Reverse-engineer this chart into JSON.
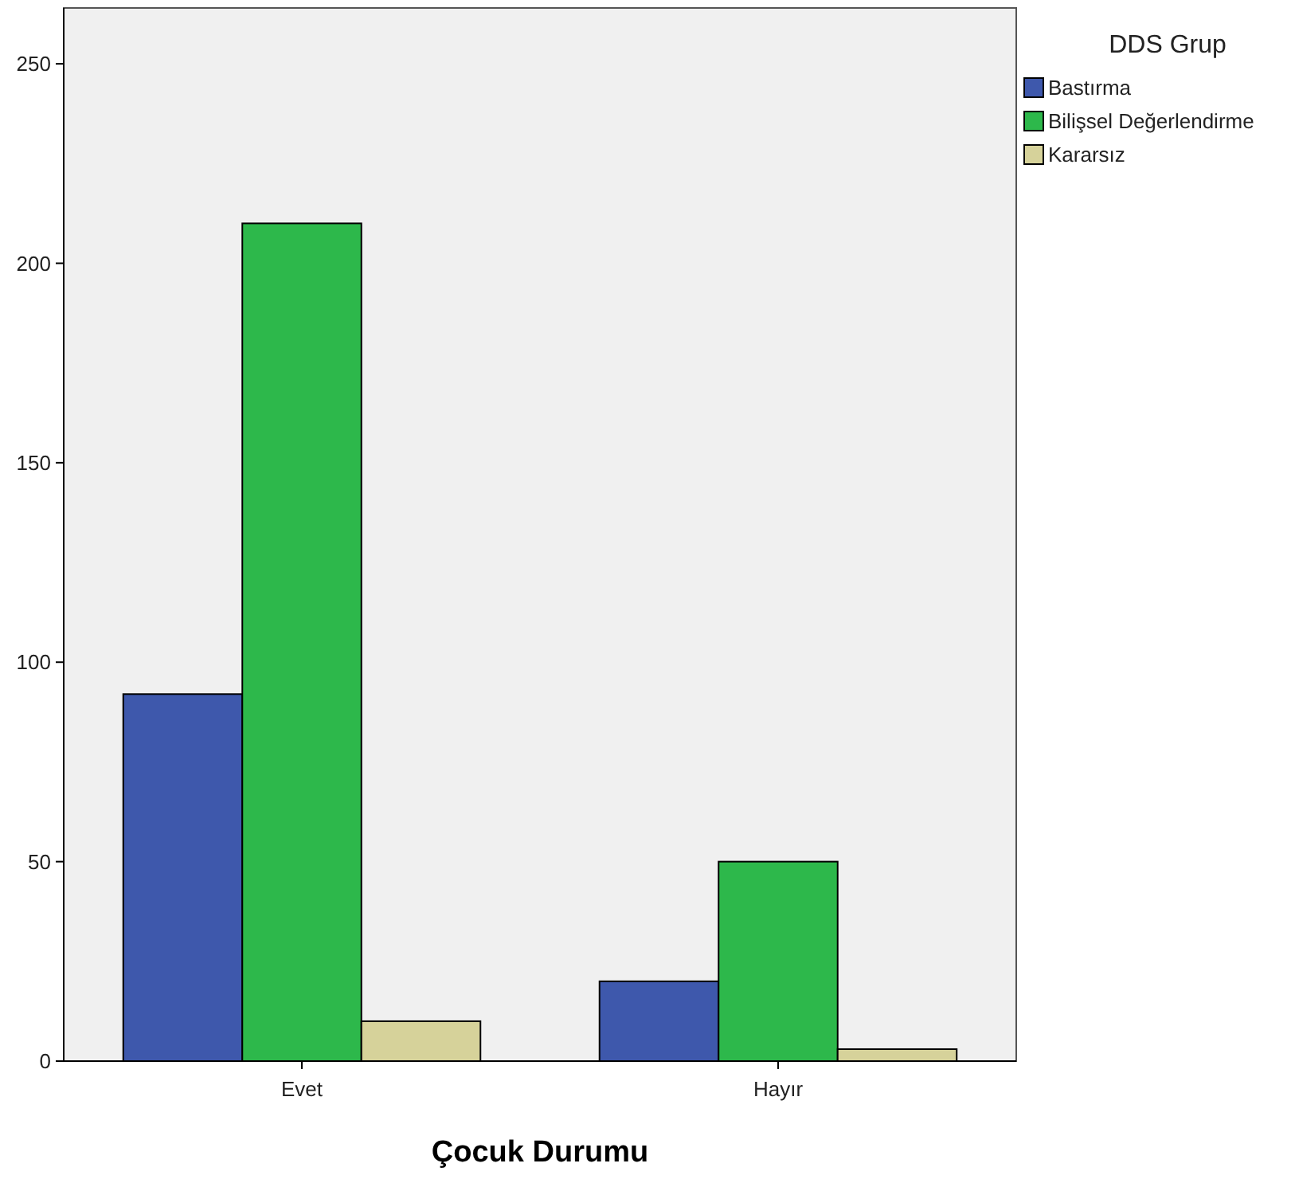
{
  "chart_data": {
    "type": "bar",
    "xlabel": "Çocuk Durumu",
    "legend_title": "DDS Grup",
    "categories": [
      "Evet",
      "Hayır"
    ],
    "series": [
      {
        "name": "Bastırma",
        "color": "#3e58ac",
        "values": [
          92,
          20
        ]
      },
      {
        "name": "Bilişsel Değerlendirme",
        "color": "#2db84b",
        "values": [
          210,
          50
        ]
      },
      {
        "name": "Kararsız",
        "color": "#d6d29a",
        "values": [
          10,
          3
        ]
      }
    ],
    "ylim": [
      0,
      264
    ],
    "yticks": [
      0,
      50,
      100,
      150,
      200,
      250
    ],
    "grid": false,
    "legend": "top right"
  }
}
